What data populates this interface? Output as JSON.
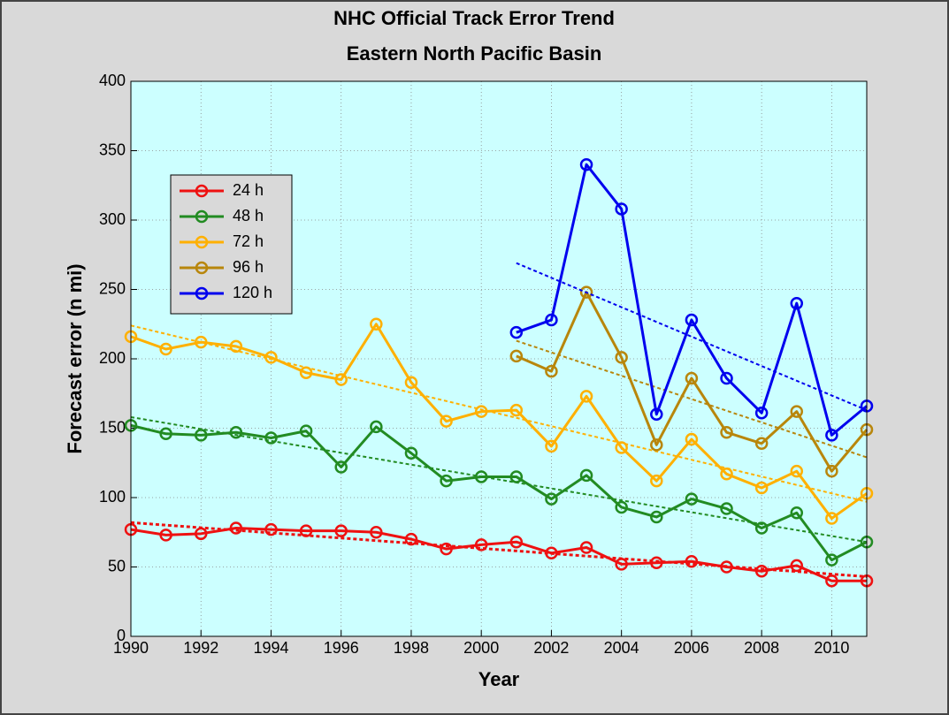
{
  "chart_data": {
    "type": "line",
    "title": "NHC Official Track Error Trend",
    "subtitle": "Eastern North Pacific Basin",
    "x_label": "Year",
    "y_label": "Forecast error (n mi)",
    "x": [
      1990,
      1991,
      1992,
      1993,
      1994,
      1995,
      1996,
      1997,
      1998,
      1999,
      2000,
      2001,
      2002,
      2003,
      2004,
      2005,
      2006,
      2007,
      2008,
      2009,
      2010,
      2011
    ],
    "series": [
      {
        "name": "24 h",
        "color": "#ee1111",
        "values": [
          77,
          73,
          74,
          78,
          77,
          76,
          76,
          75,
          70,
          63,
          66,
          68,
          60,
          64,
          52,
          53,
          54,
          50,
          47,
          51,
          40,
          40
        ],
        "trend": [
          82,
          43
        ]
      },
      {
        "name": "48 h",
        "color": "#228b22",
        "values": [
          152,
          146,
          145,
          147,
          143,
          148,
          122,
          151,
          132,
          112,
          115,
          115,
          99,
          116,
          93,
          86,
          99,
          92,
          78,
          89,
          55,
          68
        ],
        "trend": [
          158,
          68
        ]
      },
      {
        "name": "72 h",
        "color": "#ffb000",
        "values": [
          216,
          207,
          212,
          209,
          201,
          190,
          185,
          225,
          183,
          155,
          162,
          163,
          137,
          173,
          136,
          112,
          142,
          117,
          107,
          119,
          85,
          103
        ],
        "trend": [
          224,
          97
        ]
      },
      {
        "name": "96 h",
        "color": "#b8860b",
        "values": [
          null,
          null,
          null,
          null,
          null,
          null,
          null,
          null,
          null,
          null,
          null,
          202,
          191,
          248,
          201,
          138,
          186,
          147,
          139,
          162,
          119,
          149
        ],
        "trend": [
          213,
          129
        ]
      },
      {
        "name": "120 h",
        "color": "#0000ee",
        "values": [
          null,
          null,
          null,
          null,
          null,
          null,
          null,
          null,
          null,
          null,
          null,
          219,
          228,
          340,
          308,
          160,
          228,
          186,
          161,
          240,
          145,
          166
        ],
        "trend": [
          269,
          163
        ]
      }
    ],
    "xlim": [
      1990,
      2011
    ],
    "xticks": [
      1990,
      1992,
      1994,
      1996,
      1998,
      2000,
      2002,
      2004,
      2006,
      2008,
      2010
    ],
    "ylim": [
      0,
      400
    ],
    "yticks": [
      0,
      50,
      100,
      150,
      200,
      250,
      300,
      350,
      400
    ],
    "grid": true,
    "legend": "upper-left"
  }
}
